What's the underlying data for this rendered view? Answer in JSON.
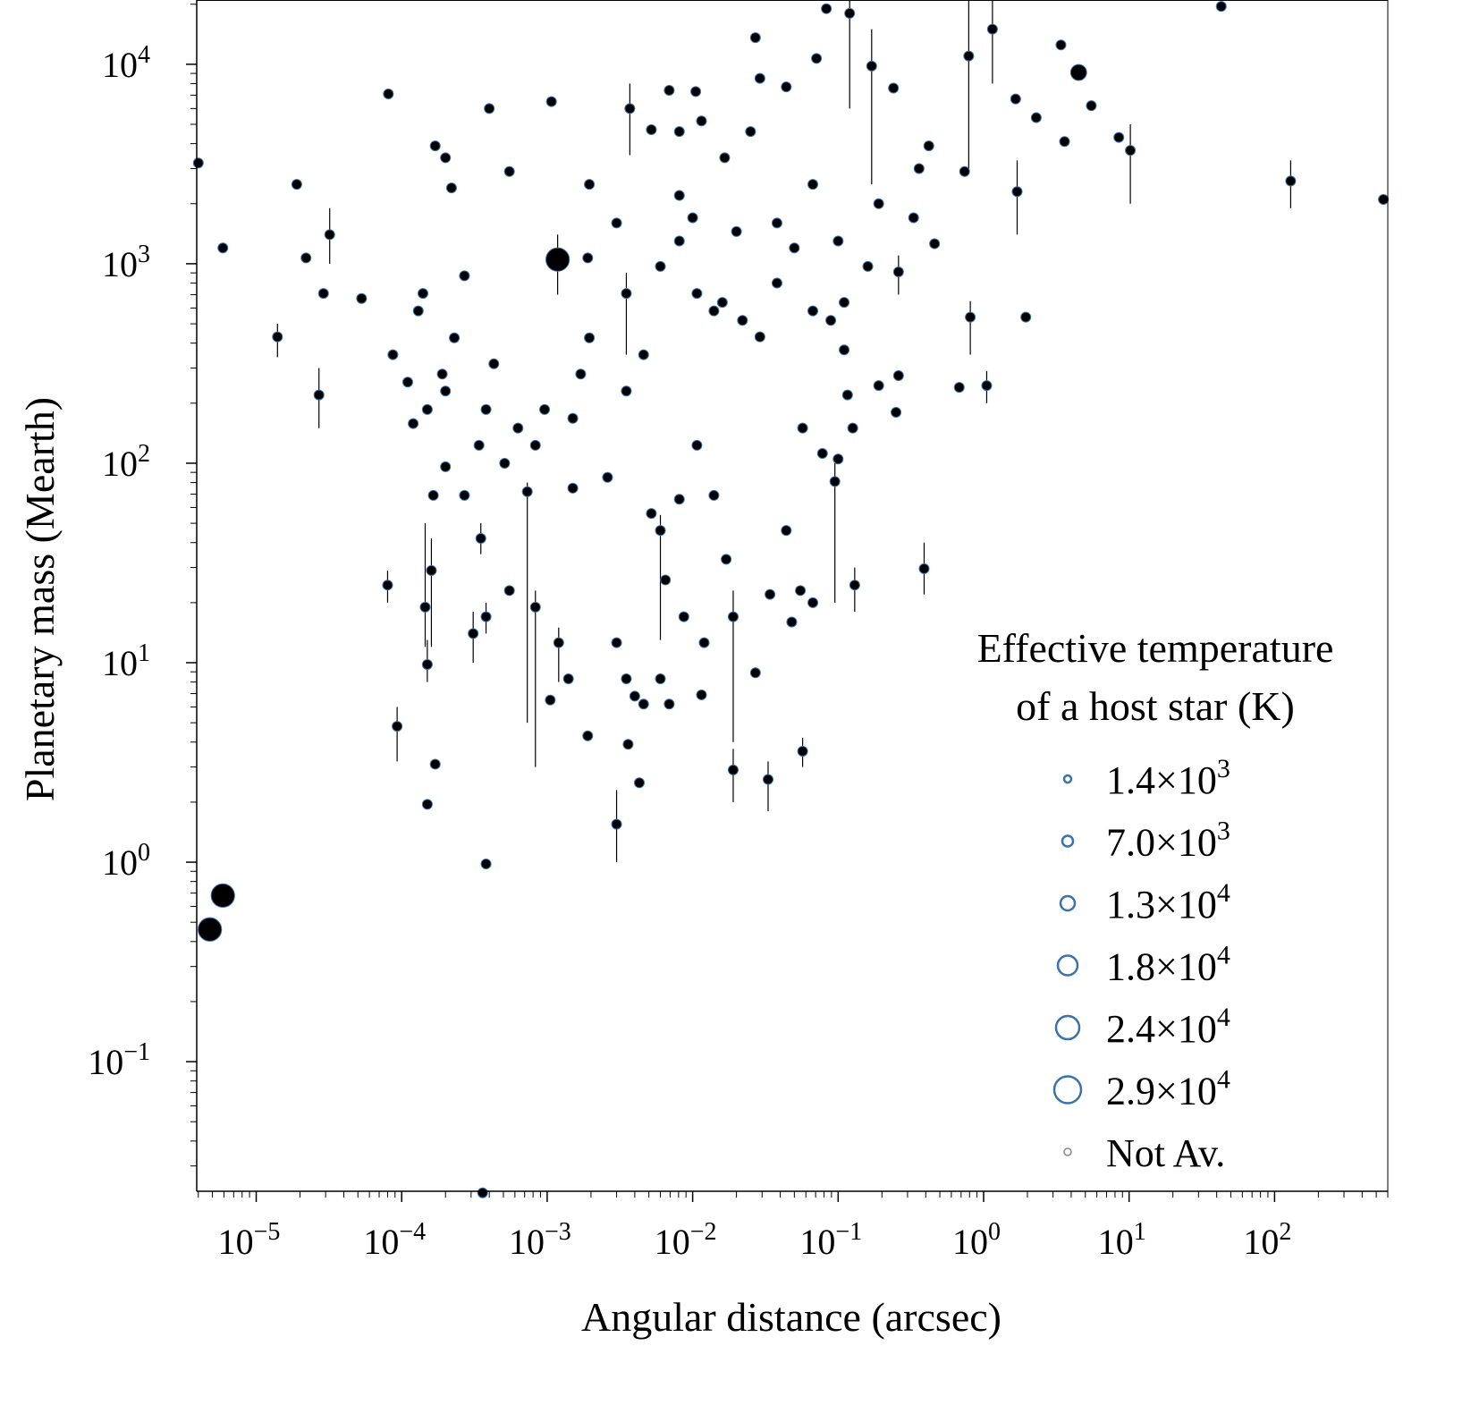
{
  "chart_data": {
    "type": "scatter",
    "xlabel": "Angular distance (arcsec)",
    "ylabel": "Planetary mass (Mearth)",
    "xscale": "log",
    "yscale": "log",
    "xlim": [
      3.9e-06,
      600
    ],
    "ylim": [
      0.0224,
      21000
    ],
    "grid": false,
    "x_ticks": [
      {
        "base": "10",
        "exp": "−5",
        "value": 1e-05
      },
      {
        "base": "10",
        "exp": "−4",
        "value": 0.0001
      },
      {
        "base": "10",
        "exp": "−3",
        "value": 0.001
      },
      {
        "base": "10",
        "exp": "−2",
        "value": 0.01
      },
      {
        "base": "10",
        "exp": "−1",
        "value": 0.1
      },
      {
        "base": "10",
        "exp": "0",
        "value": 1
      },
      {
        "base": "10",
        "exp": "1",
        "value": 10
      },
      {
        "base": "10",
        "exp": "2",
        "value": 100
      }
    ],
    "y_ticks": [
      {
        "base": "10",
        "exp": "4",
        "value": 10000.0
      },
      {
        "base": "10",
        "exp": "3",
        "value": 1000.0
      },
      {
        "base": "10",
        "exp": "2",
        "value": 100.0
      },
      {
        "base": "10",
        "exp": "1",
        "value": 10
      },
      {
        "base": "10",
        "exp": "0",
        "value": 1
      },
      {
        "base": "10",
        "exp": "−1",
        "value": 0.1
      }
    ],
    "legend": {
      "title_lines": [
        "Effective temperature",
        "of a host star (K)"
      ],
      "placement": "lower-right",
      "entries": [
        {
          "mantissa": "1.4×10",
          "exp": "3",
          "teff": 1400
        },
        {
          "mantissa": "7.0×10",
          "exp": "3",
          "teff": 7000
        },
        {
          "mantissa": "1.3×10",
          "exp": "4",
          "teff": 13000
        },
        {
          "mantissa": "1.8×10",
          "exp": "4",
          "teff": 18000
        },
        {
          "mantissa": "2.4×10",
          "exp": "4",
          "teff": 24000
        },
        {
          "mantissa": "2.9×10",
          "exp": "4",
          "teff": 29000
        },
        {
          "mantissa": "Not Av.",
          "exp": "",
          "teff": null
        }
      ]
    },
    "colors": {
      "marker_fill": "#000000",
      "marker_edge": "#3a72aa",
      "errorbar": "#000000",
      "not_available": "#888888"
    },
    "points_format": [
      "x_arcsec",
      "mass_mearth",
      "mass_lo",
      "mass_hi",
      "teff_K"
    ],
    "points": [
      [
        4e-06,
        3200,
        null,
        null,
        5000
      ],
      [
        5.9e-06,
        1200,
        null,
        null,
        4000
      ],
      [
        5.9e-06,
        0.68,
        null,
        null,
        24000
      ],
      [
        4.8e-06,
        0.46,
        null,
        null,
        24000
      ],
      [
        1.9e-05,
        2500,
        null,
        null,
        5800
      ],
      [
        1.4e-05,
        430,
        340,
        500,
        5800
      ],
      [
        2.2e-05,
        1070,
        null,
        null,
        5800
      ],
      [
        8.1e-05,
        7100,
        null,
        null,
        5800
      ],
      [
        0.0004,
        6000,
        null,
        null,
        5800
      ],
      [
        0.00107,
        6500,
        null,
        null,
        4000
      ],
      [
        0.00118,
        1050,
        700,
        1400,
        24000
      ],
      [
        0.00017,
        3900,
        null,
        null,
        5800
      ],
      [
        0.0002,
        3400,
        null,
        null,
        5800
      ],
      [
        0.00022,
        2400,
        null,
        null,
        5800
      ],
      [
        0.00055,
        2900,
        null,
        null,
        5800
      ],
      [
        3.2e-05,
        1400,
        1000,
        1900,
        5800
      ],
      [
        2.9e-05,
        710,
        null,
        null,
        5800
      ],
      [
        2.7e-05,
        220,
        150,
        300,
        5800
      ],
      [
        5.3e-05,
        670,
        null,
        null,
        5800
      ],
      [
        8.7e-05,
        350,
        null,
        null,
        5800
      ],
      [
        0.00011,
        255,
        null,
        null,
        5800
      ],
      [
        0.00013,
        580,
        null,
        null,
        5800
      ],
      [
        0.00015,
        186,
        null,
        null,
        5800
      ],
      [
        0.00019,
        280,
        null,
        null,
        5800
      ],
      [
        0.00023,
        425,
        null,
        null,
        5800
      ],
      [
        0.00012,
        158,
        null,
        null,
        5800
      ],
      [
        0.0002,
        230,
        null,
        null,
        5800
      ],
      [
        0.00014,
        710,
        null,
        null,
        5800
      ],
      [
        0.00027,
        870,
        null,
        null,
        5800
      ],
      [
        0.00038,
        186,
        null,
        null,
        5800
      ],
      [
        0.00034,
        123,
        null,
        null,
        5800
      ],
      [
        0.00043,
        315,
        null,
        null,
        5800
      ],
      [
        0.00063,
        150,
        null,
        null,
        5800
      ],
      [
        0.00083,
        123,
        null,
        null,
        5800
      ],
      [
        0.00096,
        186,
        null,
        null,
        5800
      ],
      [
        0.0015,
        168,
        null,
        null,
        5800
      ],
      [
        0.0019,
        1070,
        null,
        null,
        5800
      ],
      [
        0.003,
        1600,
        null,
        null,
        5800
      ],
      [
        0.0035,
        710,
        350,
        900,
        5800
      ],
      [
        0.0046,
        350,
        null,
        null,
        5800
      ],
      [
        0.006,
        970,
        null,
        null,
        5800
      ],
      [
        0.0081,
        1300,
        null,
        null,
        5800
      ],
      [
        0.0107,
        710,
        null,
        null,
        5800
      ],
      [
        0.014,
        580,
        null,
        null,
        5800
      ],
      [
        0.016,
        640,
        null,
        null,
        5800
      ],
      [
        0.022,
        520,
        null,
        null,
        5800
      ],
      [
        0.029,
        430,
        null,
        null,
        5800
      ],
      [
        0.038,
        800,
        null,
        null,
        5800
      ],
      [
        0.05,
        1200,
        null,
        null,
        5800
      ],
      [
        0.067,
        580,
        null,
        null,
        5800
      ],
      [
        0.089,
        520,
        null,
        null,
        5800
      ],
      [
        0.11,
        640,
        null,
        null,
        5800
      ],
      [
        0.025,
        4600,
        null,
        null,
        5800
      ],
      [
        0.029,
        8500,
        null,
        null,
        5800
      ],
      [
        0.044,
        7700,
        null,
        null,
        5800
      ],
      [
        0.071,
        10700,
        null,
        null,
        5800
      ],
      [
        0.12,
        18000,
        6000,
        21000,
        4000
      ],
      [
        1.15,
        15000,
        8000,
        21000,
        5800
      ],
      [
        3.4,
        12500,
        null,
        null,
        5800
      ],
      [
        4.5,
        9100,
        null,
        null,
        13000
      ],
      [
        8.5,
        4300,
        null,
        null,
        4000
      ],
      [
        10.2,
        3700,
        2000,
        5000,
        4000
      ],
      [
        129,
        2600,
        1900,
        3300,
        4000
      ],
      [
        560,
        2100,
        null,
        null,
        5800
      ],
      [
        43,
        19500,
        null,
        null,
        5800
      ],
      [
        1.7,
        2300,
        1400,
        3300,
        4000
      ],
      [
        0.81,
        540,
        350,
        650,
        5800
      ],
      [
        1.95,
        540,
        null,
        null,
        4000
      ],
      [
        1.05,
        245,
        200,
        290,
        5800
      ],
      [
        0.68,
        240,
        null,
        null,
        4000
      ],
      [
        0.39,
        29.6,
        22,
        40,
        5800
      ],
      [
        0.26,
        910,
        700,
        1100,
        5800
      ],
      [
        0.46,
        1260,
        null,
        null,
        5800
      ],
      [
        0.33,
        1700,
        null,
        null,
        5800
      ],
      [
        0.19,
        2000,
        null,
        null,
        5800
      ],
      [
        0.13,
        24.5,
        18,
        30,
        5800
      ],
      [
        0.033,
        2.6,
        1.8,
        3.2,
        5800
      ],
      [
        0.057,
        3.6,
        3.0,
        4.2,
        5800
      ],
      [
        0.019,
        2.9,
        2.0,
        3.7,
        5800
      ],
      [
        0.003,
        1.55,
        1.0,
        2.3,
        5800
      ],
      [
        0.00038,
        0.98,
        null,
        null,
        5800
      ],
      [
        0.00015,
        1.95,
        null,
        null,
        5800
      ],
      [
        0.00017,
        3.1,
        null,
        null,
        5800
      ],
      [
        9.3e-05,
        4.8,
        3.2,
        6.0,
        5800
      ],
      [
        8e-05,
        24.5,
        20,
        29,
        5800
      ],
      [
        0.00016,
        29,
        12,
        42,
        5800
      ],
      [
        0.000145,
        19,
        12,
        50,
        5800
      ],
      [
        0.00015,
        9.8,
        8,
        13,
        5800
      ],
      [
        0.00031,
        14,
        10,
        18,
        5800
      ],
      [
        0.00038,
        17,
        14,
        20,
        5800
      ],
      [
        0.00035,
        42,
        35,
        50,
        5800
      ],
      [
        0.00055,
        23,
        null,
        null,
        5800
      ],
      [
        0.00083,
        19,
        3,
        23,
        5800
      ],
      [
        0.0012,
        12.6,
        8,
        15,
        5800
      ],
      [
        0.00105,
        6.5,
        null,
        null,
        5800
      ],
      [
        0.0014,
        8.3,
        null,
        null,
        5800
      ],
      [
        0.0019,
        4.3,
        null,
        null,
        5800
      ],
      [
        0.003,
        12.6,
        null,
        null,
        5800
      ],
      [
        0.0035,
        8.3,
        null,
        null,
        5800
      ],
      [
        0.004,
        6.8,
        null,
        null,
        5800
      ],
      [
        0.0046,
        6.2,
        null,
        null,
        5800
      ],
      [
        0.0036,
        3.9,
        null,
        null,
        5800
      ],
      [
        0.0043,
        2.5,
        null,
        null,
        5800
      ],
      [
        0.006,
        8.3,
        null,
        null,
        5800
      ],
      [
        0.0069,
        6.2,
        null,
        null,
        5800
      ],
      [
        0.0065,
        26,
        null,
        null,
        5800
      ],
      [
        0.006,
        46,
        13,
        55,
        5800
      ],
      [
        0.0087,
        17,
        null,
        null,
        5800
      ],
      [
        0.012,
        12.6,
        null,
        null,
        5800
      ],
      [
        0.0115,
        6.9,
        null,
        null,
        5800
      ],
      [
        0.017,
        33,
        null,
        null,
        5800
      ],
      [
        0.019,
        17,
        4,
        23,
        5800
      ],
      [
        0.027,
        8.9,
        null,
        null,
        5800
      ],
      [
        0.034,
        22,
        null,
        null,
        5800
      ],
      [
        0.048,
        16,
        null,
        null,
        5800
      ],
      [
        0.067,
        20,
        null,
        null,
        5800
      ],
      [
        0.055,
        23,
        null,
        null,
        5800
      ],
      [
        0.044,
        46,
        null,
        null,
        5800
      ],
      [
        0.014,
        69,
        null,
        null,
        5800
      ],
      [
        0.0081,
        66,
        null,
        null,
        5800
      ],
      [
        0.0052,
        56,
        null,
        null,
        5800
      ],
      [
        0.0026,
        85,
        null,
        null,
        5800
      ],
      [
        0.0015,
        75,
        null,
        null,
        5800
      ],
      [
        0.00073,
        72,
        5,
        80,
        5800
      ],
      [
        0.00051,
        100,
        null,
        null,
        5800
      ],
      [
        0.00027,
        69,
        null,
        null,
        5800
      ],
      [
        0.0002,
        96,
        null,
        null,
        5800
      ],
      [
        0.000165,
        69,
        null,
        null,
        5800
      ],
      [
        0.078,
        112,
        null,
        null,
        5800
      ],
      [
        0.1,
        105,
        null,
        null,
        5800
      ],
      [
        0.095,
        81,
        20,
        100,
        5800
      ],
      [
        0.057,
        150,
        null,
        null,
        5800
      ],
      [
        0.0107,
        123,
        null,
        null,
        5800
      ],
      [
        0.0035,
        230,
        null,
        null,
        5800
      ],
      [
        0.0017,
        280,
        null,
        null,
        5800
      ],
      [
        0.00195,
        425,
        null,
        null,
        5800
      ],
      [
        0.0081,
        4600,
        null,
        null,
        5800
      ],
      [
        0.0069,
        7400,
        null,
        null,
        5800
      ],
      [
        0.0105,
        7300,
        null,
        null,
        5800
      ],
      [
        0.0052,
        4700,
        null,
        null,
        5800
      ],
      [
        0.0115,
        5200,
        null,
        null,
        5800
      ],
      [
        0.0166,
        3400,
        null,
        null,
        5800
      ],
      [
        0.027,
        13600,
        null,
        null,
        5800
      ],
      [
        0.083,
        19000,
        null,
        null,
        5800
      ],
      [
        0.24,
        7600,
        null,
        null,
        5800
      ],
      [
        0.17,
        9800,
        2500,
        15000,
        5800
      ],
      [
        0.42,
        3900,
        null,
        null,
        5800
      ],
      [
        0.36,
        3000,
        null,
        null,
        5800
      ],
      [
        0.16,
        970,
        null,
        null,
        5800
      ],
      [
        0.11,
        370,
        null,
        null,
        5800
      ],
      [
        0.116,
        220,
        null,
        null,
        5800
      ],
      [
        0.19,
        245,
        null,
        null,
        5800
      ],
      [
        0.25,
        180,
        null,
        null,
        5800
      ],
      [
        0.26,
        275,
        null,
        null,
        4000
      ],
      [
        0.02,
        1450,
        null,
        null,
        5800
      ],
      [
        0.0081,
        2200,
        null,
        null,
        5800
      ],
      [
        0.01,
        1700,
        null,
        null,
        5800
      ],
      [
        0.038,
        1600,
        null,
        null,
        5800
      ],
      [
        0.067,
        2500,
        null,
        null,
        5800
      ],
      [
        0.1,
        1300,
        null,
        null,
        5800
      ],
      [
        0.126,
        150,
        null,
        null,
        5800
      ],
      [
        0.00195,
        2500,
        null,
        null,
        5800
      ],
      [
        0.0037,
        6000,
        3500,
        8000,
        5800
      ],
      [
        1.66,
        6700,
        null,
        null,
        5800
      ],
      [
        2.3,
        5400,
        null,
        null,
        4000
      ],
      [
        3.6,
        4100,
        null,
        null,
        4000
      ],
      [
        0.79,
        11000,
        3000,
        21000,
        4000
      ],
      [
        0.74,
        2900,
        null,
        null,
        4000
      ],
      [
        5.5,
        6200,
        null,
        null,
        5800
      ],
      [
        0.00036,
        0.022,
        null,
        null,
        4000
      ]
    ]
  }
}
